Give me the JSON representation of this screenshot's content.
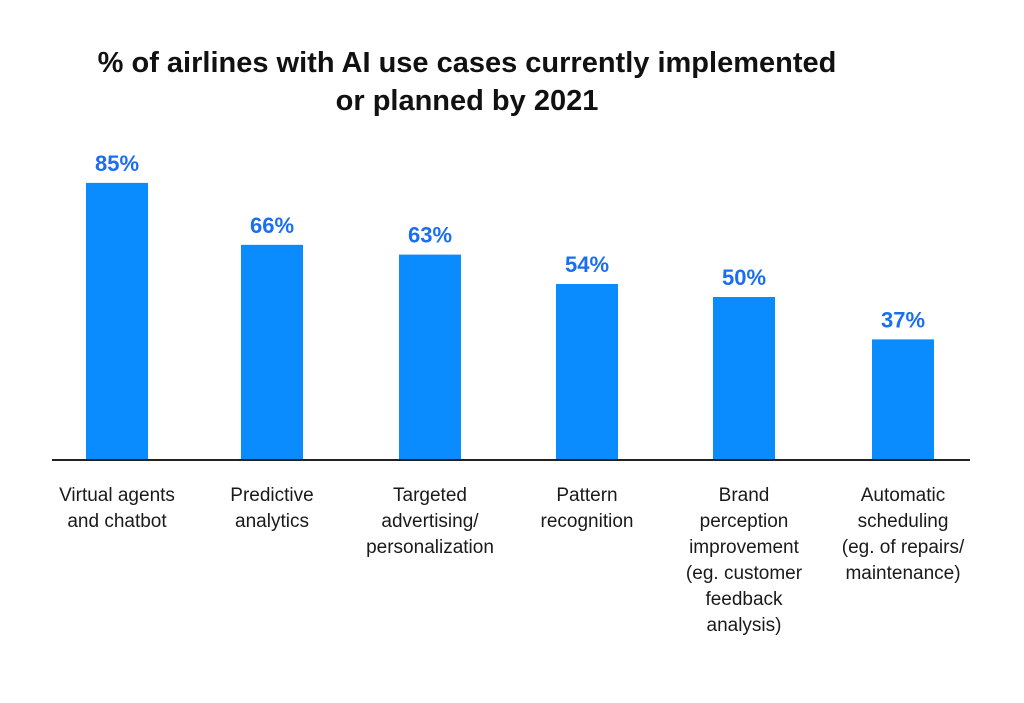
{
  "chart_data": {
    "type": "bar",
    "title_lines": [
      "% of airlines with AI use cases currently implemented",
      "or planned by 2021"
    ],
    "categories": [
      "Virtual agents\nand chatbot",
      "Predictive\nanalytics",
      "Targeted\nadvertising/\npersonalization",
      "Pattern\nrecognition",
      "Brand\nperception\nimprovement\n(eg. customer\nfeedback\nanalysis)",
      "Automatic\nscheduling\n(eg. of repairs/\nmaintenance)"
    ],
    "values": [
      85,
      66,
      63,
      54,
      50,
      37
    ],
    "data_labels": [
      "85%",
      "66%",
      "63%",
      "54%",
      "50%",
      "37%"
    ],
    "ylim": [
      0,
      100
    ],
    "grid": false,
    "legend": "none",
    "colors": {
      "bar": "#0a8cff",
      "label": "#1a6ff0",
      "axis": "#222222"
    }
  }
}
